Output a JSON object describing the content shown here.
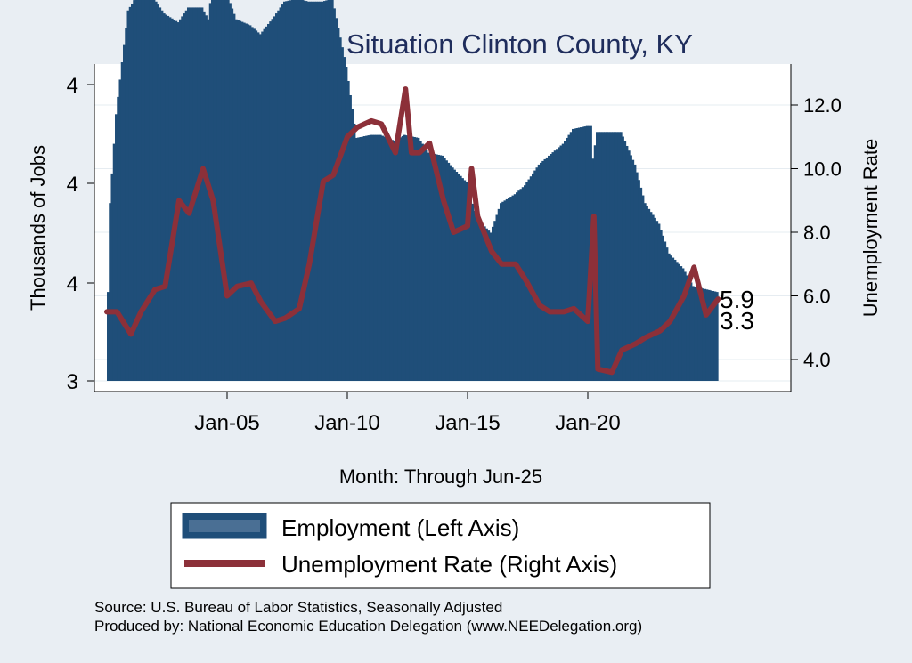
{
  "chart_data": {
    "type": "bar+line",
    "title": "Employment Situation Clinton  County, KY",
    "xlabel": "Month: Through Jun-25",
    "ylabel_left": "Thousands of Jobs",
    "ylabel_right": "Unemployment Rate",
    "x_ticks": [
      "Jan-05",
      "Jan-10",
      "Jan-15",
      "Jan-20"
    ],
    "y_left_ticks": [
      "4",
      "4",
      "4",
      "3"
    ],
    "y_right_ticks": [
      "12.0",
      "10.0",
      "8.0",
      "6.0",
      "4.0"
    ],
    "y_right_range": [
      3.0,
      13.0
    ],
    "y_left_range": [
      3.0,
      4.6
    ],
    "end_labels": {
      "unemployment": "5.9",
      "employment": "3.3"
    },
    "legend": {
      "position": "bottom",
      "employment": "Employment (Left Axis)",
      "unemployment": "Unemployment Rate (Right Axis)"
    },
    "colors": {
      "employment": "#1f4e79",
      "unemployment": "#8c3039",
      "background": "#e9eef3",
      "plot": "#ffffff"
    },
    "employment": [
      {
        "date": "2000-01",
        "value": 3.0
      },
      {
        "date": "2000-03",
        "value": 3.6
      },
      {
        "date": "2000-06",
        "value": 3.9
      },
      {
        "date": "2000-12",
        "value": 4.25
      },
      {
        "date": "2001-06",
        "value": 4.32
      },
      {
        "date": "2001-12",
        "value": 4.3
      },
      {
        "date": "2002-06",
        "value": 4.24
      },
      {
        "date": "2003-01",
        "value": 4.21
      },
      {
        "date": "2003-06",
        "value": 4.26
      },
      {
        "date": "2004-01",
        "value": 4.26
      },
      {
        "date": "2004-04",
        "value": 4.22
      },
      {
        "date": "2004-06",
        "value": 4.33
      },
      {
        "date": "2004-12",
        "value": 4.33
      },
      {
        "date": "2005-06",
        "value": 4.22
      },
      {
        "date": "2006-01",
        "value": 4.2
      },
      {
        "date": "2006-06",
        "value": 4.17
      },
      {
        "date": "2007-01",
        "value": 4.23
      },
      {
        "date": "2007-06",
        "value": 4.28
      },
      {
        "date": "2008-01",
        "value": 4.29
      },
      {
        "date": "2008-06",
        "value": 4.28
      },
      {
        "date": "2009-01",
        "value": 4.28
      },
      {
        "date": "2009-06",
        "value": 4.29
      },
      {
        "date": "2010-01",
        "value": 4.06
      },
      {
        "date": "2010-06",
        "value": 3.82
      },
      {
        "date": "2011-01",
        "value": 3.83
      },
      {
        "date": "2011-06",
        "value": 3.83
      },
      {
        "date": "2012-01",
        "value": 3.81
      },
      {
        "date": "2012-06",
        "value": 3.83
      },
      {
        "date": "2013-01",
        "value": 3.82
      },
      {
        "date": "2013-06",
        "value": 3.77
      },
      {
        "date": "2014-01",
        "value": 3.76
      },
      {
        "date": "2014-06",
        "value": 3.72
      },
      {
        "date": "2015-01",
        "value": 3.67
      },
      {
        "date": "2015-06",
        "value": 3.55
      },
      {
        "date": "2016-01",
        "value": 3.5
      },
      {
        "date": "2016-06",
        "value": 3.6
      },
      {
        "date": "2017-01",
        "value": 3.63
      },
      {
        "date": "2017-06",
        "value": 3.66
      },
      {
        "date": "2018-01",
        "value": 3.73
      },
      {
        "date": "2018-06",
        "value": 3.76
      },
      {
        "date": "2019-01",
        "value": 3.8
      },
      {
        "date": "2019-06",
        "value": 3.85
      },
      {
        "date": "2020-01",
        "value": 3.86
      },
      {
        "date": "2020-03",
        "value": 3.86
      },
      {
        "date": "2020-04",
        "value": 3.75
      },
      {
        "date": "2020-06",
        "value": 3.84
      },
      {
        "date": "2021-01",
        "value": 3.84
      },
      {
        "date": "2021-06",
        "value": 3.84
      },
      {
        "date": "2022-01",
        "value": 3.73
      },
      {
        "date": "2022-06",
        "value": 3.6
      },
      {
        "date": "2023-01",
        "value": 3.53
      },
      {
        "date": "2023-06",
        "value": 3.43
      },
      {
        "date": "2024-01",
        "value": 3.38
      },
      {
        "date": "2024-06",
        "value": 3.32
      },
      {
        "date": "2025-06",
        "value": 3.3
      }
    ],
    "unemployment": [
      {
        "date": "2000-01",
        "value": 5.5
      },
      {
        "date": "2000-06",
        "value": 5.5
      },
      {
        "date": "2001-01",
        "value": 4.8
      },
      {
        "date": "2001-06",
        "value": 5.5
      },
      {
        "date": "2002-01",
        "value": 6.2
      },
      {
        "date": "2002-06",
        "value": 6.3
      },
      {
        "date": "2003-01",
        "value": 9.0
      },
      {
        "date": "2003-06",
        "value": 8.6
      },
      {
        "date": "2004-01",
        "value": 10.0
      },
      {
        "date": "2004-06",
        "value": 9.0
      },
      {
        "date": "2005-01",
        "value": 6.0
      },
      {
        "date": "2005-06",
        "value": 6.3
      },
      {
        "date": "2006-01",
        "value": 6.4
      },
      {
        "date": "2006-06",
        "value": 5.8
      },
      {
        "date": "2007-01",
        "value": 5.2
      },
      {
        "date": "2007-06",
        "value": 5.3
      },
      {
        "date": "2008-01",
        "value": 5.6
      },
      {
        "date": "2008-06",
        "value": 7.0
      },
      {
        "date": "2009-01",
        "value": 9.6
      },
      {
        "date": "2009-06",
        "value": 9.8
      },
      {
        "date": "2010-01",
        "value": 11.0
      },
      {
        "date": "2010-06",
        "value": 11.3
      },
      {
        "date": "2011-01",
        "value": 11.5
      },
      {
        "date": "2011-06",
        "value": 11.4
      },
      {
        "date": "2012-01",
        "value": 10.5
      },
      {
        "date": "2012-06",
        "value": 12.5
      },
      {
        "date": "2012-09",
        "value": 10.5
      },
      {
        "date": "2013-01",
        "value": 10.5
      },
      {
        "date": "2013-06",
        "value": 10.8
      },
      {
        "date": "2014-01",
        "value": 9.0
      },
      {
        "date": "2014-06",
        "value": 8.0
      },
      {
        "date": "2015-01",
        "value": 8.2
      },
      {
        "date": "2015-03",
        "value": 10.0
      },
      {
        "date": "2015-06",
        "value": 8.5
      },
      {
        "date": "2016-01",
        "value": 7.4
      },
      {
        "date": "2016-06",
        "value": 7.0
      },
      {
        "date": "2017-01",
        "value": 7.0
      },
      {
        "date": "2017-06",
        "value": 6.5
      },
      {
        "date": "2018-01",
        "value": 5.7
      },
      {
        "date": "2018-06",
        "value": 5.5
      },
      {
        "date": "2019-01",
        "value": 5.5
      },
      {
        "date": "2019-06",
        "value": 5.6
      },
      {
        "date": "2020-01",
        "value": 5.2
      },
      {
        "date": "2020-04",
        "value": 8.5
      },
      {
        "date": "2020-06",
        "value": 3.7
      },
      {
        "date": "2021-01",
        "value": 3.6
      },
      {
        "date": "2021-06",
        "value": 4.3
      },
      {
        "date": "2022-01",
        "value": 4.5
      },
      {
        "date": "2022-06",
        "value": 4.7
      },
      {
        "date": "2023-01",
        "value": 4.9
      },
      {
        "date": "2023-06",
        "value": 5.2
      },
      {
        "date": "2024-01",
        "value": 6.0
      },
      {
        "date": "2024-06",
        "value": 6.9
      },
      {
        "date": "2024-12",
        "value": 5.4
      },
      {
        "date": "2025-06",
        "value": 5.9
      }
    ]
  },
  "footer": {
    "source": "Source: U.S. Bureau of Labor Statistics, Seasonally Adjusted",
    "produced": "Produced by: National Economic Education Delegation (www.NEEDelegation.org)"
  }
}
